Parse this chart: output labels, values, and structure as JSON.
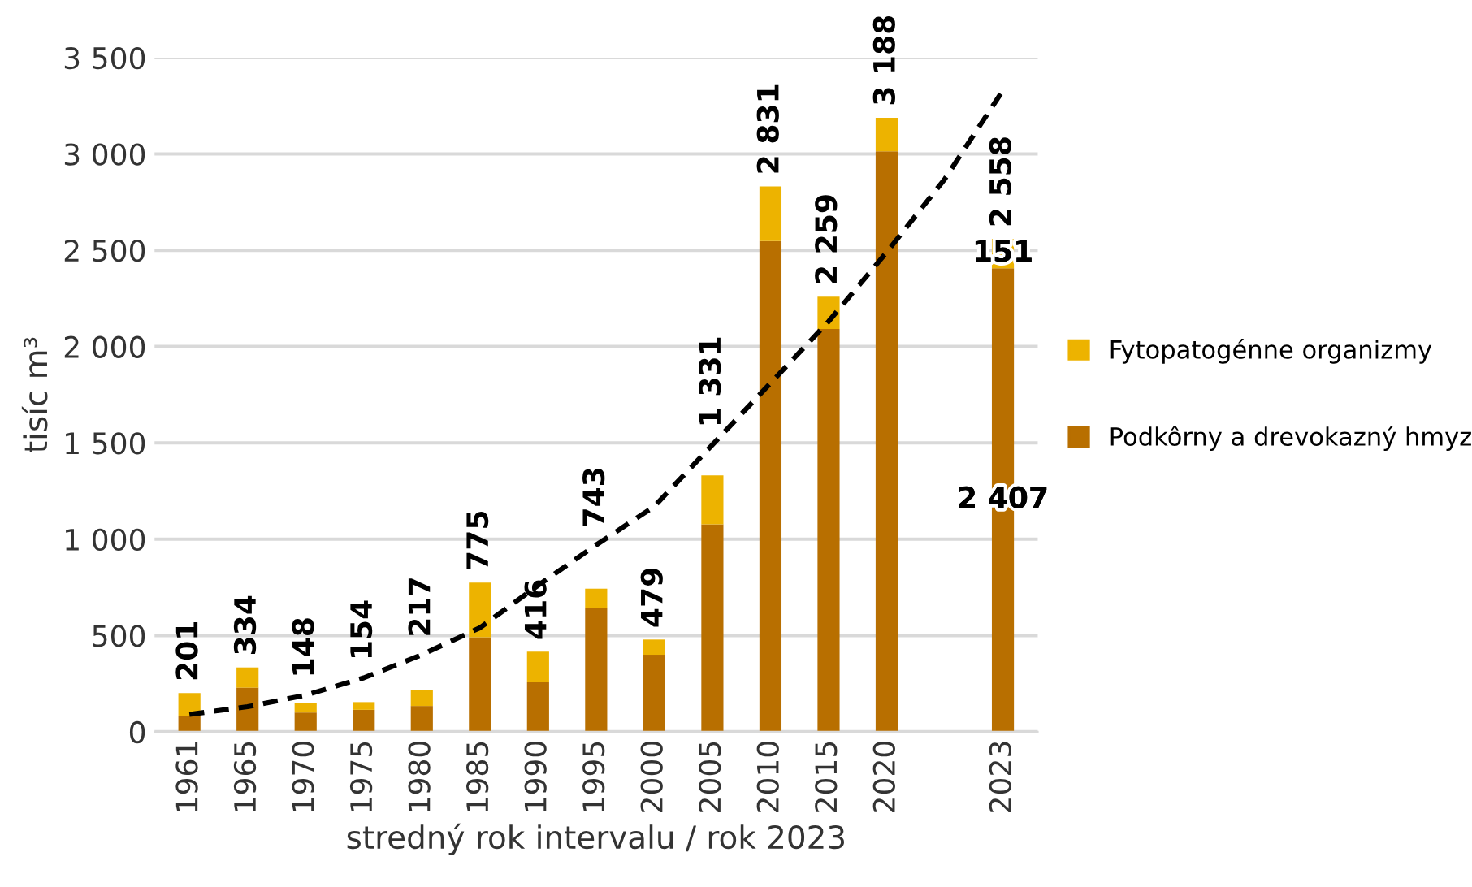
{
  "chart_data": {
    "type": "bar",
    "stacked": true,
    "ylabel": "tisíc m³",
    "xlabel": "stredný rok intervalu / rok 2023",
    "categories": [
      "1961",
      "1965",
      "1970",
      "1975",
      "1980",
      "1985",
      "1990",
      "1995",
      "2000",
      "2005",
      "2010",
      "2015",
      "2020",
      null,
      "2023"
    ],
    "series": [
      {
        "name": "Podkôrny a drevokazný hmyz",
        "color": "#b86f00",
        "values": [
          80,
          229,
          100,
          114,
          134,
          491,
          257,
          643,
          400,
          1077,
          2548,
          2091,
          3014,
          null,
          2407
        ],
        "value_labels": [
          null,
          null,
          null,
          null,
          null,
          null,
          null,
          null,
          null,
          null,
          null,
          null,
          null,
          null,
          "2 407"
        ]
      },
      {
        "name": "Fytopatogénne organizmy",
        "color": "#edb300",
        "values": [
          121,
          105,
          48,
          40,
          83,
          284,
          159,
          100,
          79,
          254,
          283,
          168,
          174,
          null,
          151
        ],
        "value_labels": [
          null,
          null,
          null,
          null,
          null,
          null,
          null,
          null,
          null,
          null,
          null,
          null,
          null,
          null,
          "151"
        ]
      },
      {
        "type": "line",
        "color": "#000000",
        "line_style": "dashed",
        "values": [
          90,
          130,
          190,
          280,
          400,
          540,
          760,
          970,
          1170,
          1490,
          1810,
          2130,
          2490,
          2870,
          3330
        ]
      }
    ],
    "totals": [
      "201",
      "334",
      "148",
      "154",
      "217",
      "775",
      "416",
      "743",
      "479",
      "1 331",
      "2 831",
      "2 259",
      "3 188",
      null,
      "2 558"
    ],
    "ylim": [
      0,
      3500
    ],
    "yticks": [
      {
        "value": 0,
        "label": "0"
      },
      {
        "value": 500,
        "label": "500"
      },
      {
        "value": 1000,
        "label": "1 000"
      },
      {
        "value": 1500,
        "label": "1 500"
      },
      {
        "value": 2000,
        "label": "2 000"
      },
      {
        "value": 2500,
        "label": "2 500"
      },
      {
        "value": 3000,
        "label": "3 000"
      },
      {
        "value": 3500,
        "label": "3 500"
      }
    ],
    "grid": "y",
    "legend": "right"
  }
}
